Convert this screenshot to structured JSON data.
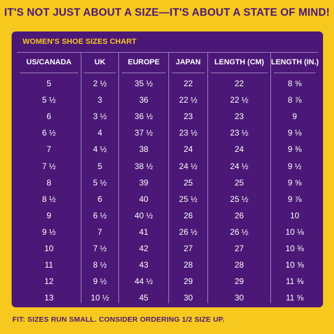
{
  "headline": "IT'S NOT JUST ABOUT A SIZE—IT'S ABOUT A STATE OF MIND!",
  "chart_title": "WOMEN'S SHOE SIZES CHART",
  "columns": [
    "US/CANADA",
    "UK",
    "EUROPE",
    "JAPAN",
    "LENGTH (CM)",
    "LENGTH (IN.)"
  ],
  "rows": [
    [
      "5",
      "2 ½",
      "35 ½",
      "22",
      "22",
      "8 ⅝"
    ],
    [
      "5 ½",
      "3",
      "36",
      "22 ½",
      "22 ½",
      "8 ⅞"
    ],
    [
      "6",
      "3 ½",
      "36 ½",
      "23",
      "23",
      "9"
    ],
    [
      "6 ½",
      "4",
      "37 ½",
      "23 ½",
      "23 ½",
      "9 ⅛"
    ],
    [
      "7",
      "4 ½",
      "38",
      "24",
      "24",
      "9 ⅜"
    ],
    [
      "7 ½",
      "5",
      "38 ½",
      "24 ½",
      "24 ½",
      "9 ½"
    ],
    [
      "8",
      "5 ½",
      "39",
      "25",
      "25",
      "9 ⅝"
    ],
    [
      "8 ½",
      "6",
      "40",
      "25 ½",
      "25 ½",
      "9 ⅞"
    ],
    [
      "9",
      "6 ½",
      "40 ½",
      "26",
      "26",
      "10"
    ],
    [
      "9 ½",
      "7",
      "41",
      "26 ½",
      "26 ½",
      "10 ⅛"
    ],
    [
      "10",
      "7 ½",
      "42",
      "27",
      "27",
      "10 ⅜"
    ],
    [
      "11",
      "8 ½",
      "43",
      "28",
      "28",
      "10 ⅝"
    ],
    [
      "12",
      "9 ½",
      "44 ½",
      "29",
      "29",
      "11 ⅜"
    ],
    [
      "13",
      "10 ½",
      "45",
      "30",
      "30",
      "11 ⅝"
    ]
  ],
  "footnote": "FIT: SIZES RUN SMALL. CONSIDER ORDERING 1/2 SIZE UP.",
  "colors": {
    "background": "#f7c81e",
    "panel": "#4b1877",
    "accent": "#f7c81e",
    "text": "#ffffff"
  }
}
